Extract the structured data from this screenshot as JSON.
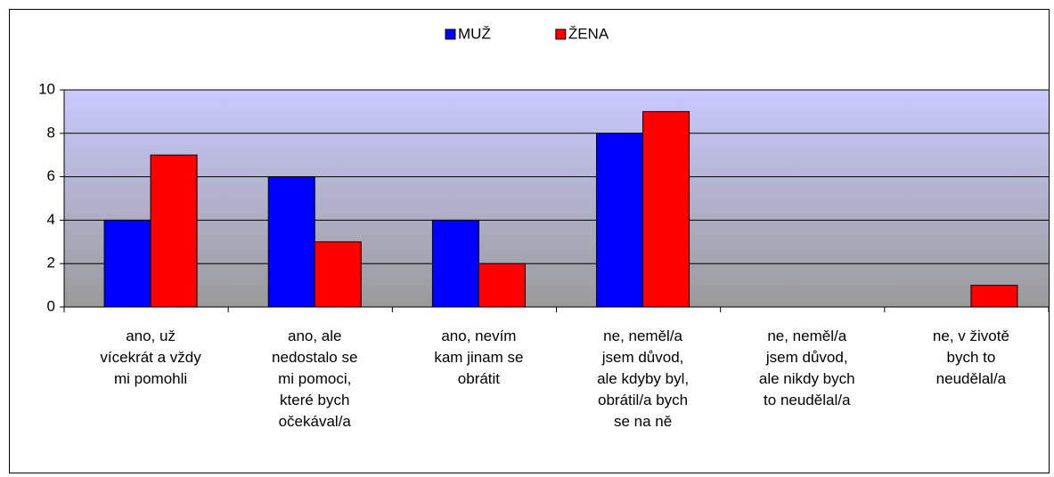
{
  "chart_data": {
    "type": "bar",
    "categories": [
      "ano, už\nvícekrát a vždy\nmi pomohli",
      "ano, ale\nnedostalo se\nmi pomoci,\nkteré bych\nočekával/a",
      "ano, nevím\nkam jinam se\nobrátit",
      "ne, neměl/a\njsem důvod,\nale kdyby byl,\nobrátil/a bych\nse na ně",
      "ne, neměl/a\njsem důvod,\nale nikdy bych\nto neudělal/a",
      "ne, v životě\nbych to\nneudělal/a"
    ],
    "series": [
      {
        "name": "MUŽ",
        "color": "#0000ff",
        "values": [
          4,
          6,
          4,
          8,
          0,
          0
        ]
      },
      {
        "name": "ŽENA",
        "color": "#ff0000",
        "values": [
          7,
          3,
          2,
          9,
          0,
          1
        ]
      }
    ],
    "ylim": [
      0,
      10
    ],
    "yticks": [
      0,
      2,
      4,
      6,
      8,
      10
    ],
    "grid": true,
    "legend": "top"
  }
}
